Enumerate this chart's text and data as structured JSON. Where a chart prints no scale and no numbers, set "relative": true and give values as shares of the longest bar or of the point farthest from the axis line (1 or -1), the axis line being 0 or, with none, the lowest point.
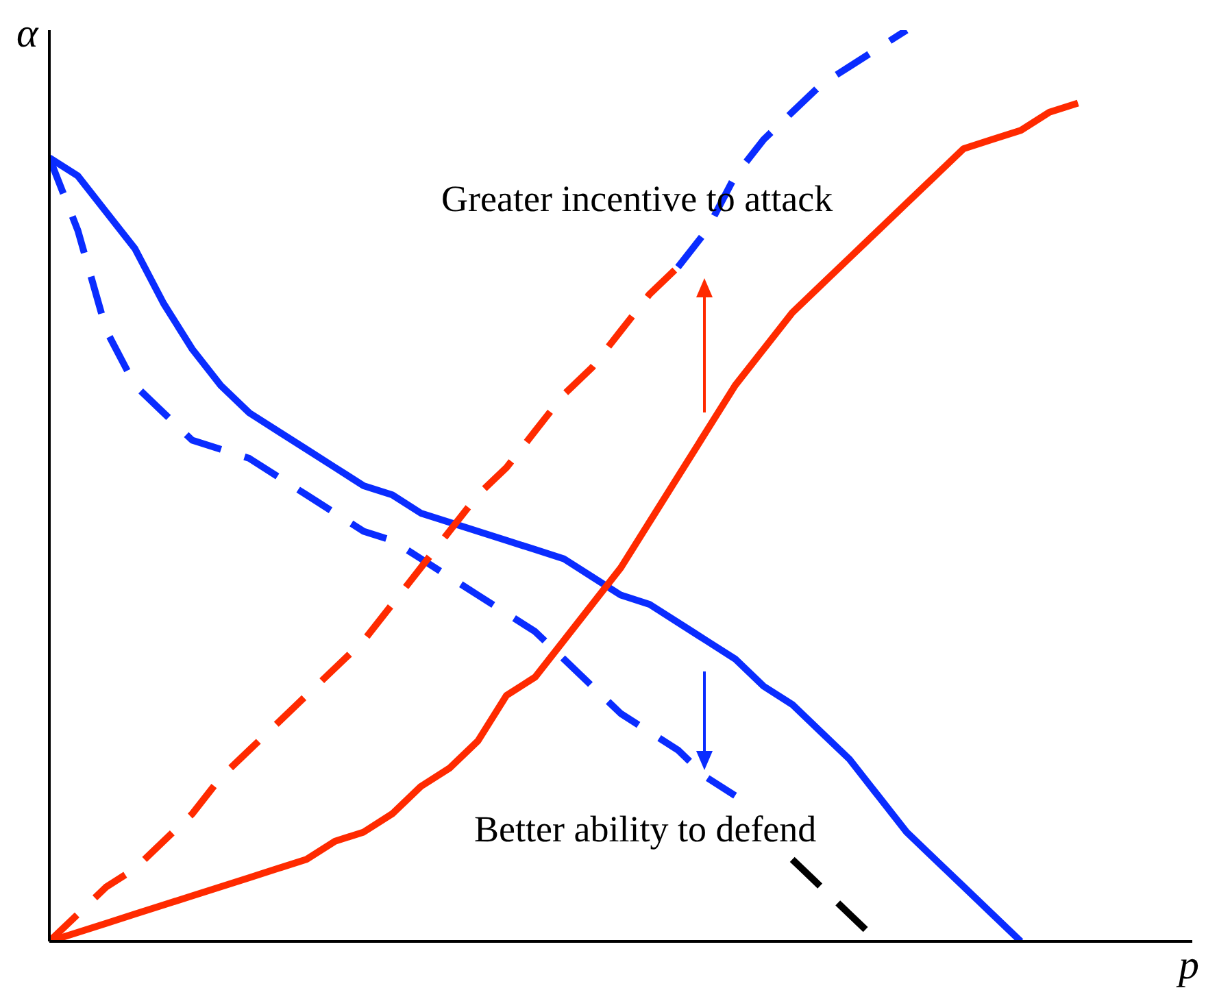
{
  "chart_data": {
    "type": "line",
    "relative": true,
    "xlabel": "p",
    "ylabel": "α",
    "marker": "none",
    "annotations": [
      "Greater incentive to attack",
      "Better ability to defend"
    ],
    "categories": [
      null,
      null,
      null,
      null,
      null,
      null,
      null,
      null,
      null,
      null,
      null,
      null,
      null,
      null,
      null,
      null,
      null,
      null,
      null,
      null,
      null,
      null,
      null,
      null,
      null,
      null,
      null,
      null,
      null,
      null,
      null,
      null,
      null,
      null,
      null,
      null,
      null,
      null,
      null,
      null,
      null
    ],
    "series": [
      {
        "color": "#0a2cff",
        "line_style": "solid",
        "values": [
          0.86,
          0.84,
          0.8,
          0.76,
          0.7,
          0.65,
          0.61,
          0.58,
          0.56,
          0.54,
          0.52,
          0.5,
          0.49,
          0.47,
          0.46,
          0.45,
          0.44,
          0.43,
          0.42,
          0.4,
          0.38,
          0.37,
          0.35,
          0.33,
          0.31,
          0.28,
          0.26,
          0.23,
          0.2,
          0.16,
          0.12,
          0.09,
          0.06,
          0.03,
          0,
          null,
          null,
          null,
          null,
          null,
          null
        ]
      },
      {
        "color": "#0a2cff",
        "line_style": "dashed",
        "values": [
          0.86,
          0.78,
          0.67,
          0.61,
          0.58,
          0.55,
          0.54,
          0.53,
          0.51,
          0.49,
          0.47,
          0.45,
          0.44,
          0.42,
          0.4,
          0.38,
          0.36,
          0.34,
          0.31,
          0.28,
          0.25,
          0.23,
          0.21,
          0.18,
          0.16,
          null,
          null,
          null,
          null,
          null,
          null,
          null,
          null,
          null,
          null,
          null,
          null,
          null,
          null,
          null,
          null
        ]
      },
      {
        "color": "#000000",
        "line_style": "dashed",
        "values": [
          null,
          null,
          null,
          null,
          null,
          null,
          null,
          null,
          null,
          null,
          null,
          null,
          null,
          null,
          null,
          null,
          null,
          null,
          null,
          null,
          null,
          null,
          null,
          null,
          null,
          null,
          0.09,
          0.06,
          0.03,
          0,
          null,
          null,
          null,
          null,
          null,
          null,
          null,
          null,
          null,
          null,
          null
        ]
      },
      {
        "color": "#ff2a00",
        "line_style": "dashed",
        "values": [
          0,
          0.03,
          0.06,
          0.08,
          0.11,
          0.14,
          0.18,
          0.21,
          0.24,
          0.27,
          0.3,
          0.33,
          0.37,
          0.41,
          0.45,
          0.49,
          0.52,
          0.56,
          0.6,
          0.63,
          0.67,
          0.71,
          0.74,
          null,
          null,
          null,
          null,
          null,
          null,
          null,
          null,
          null,
          null,
          null,
          null,
          null,
          null,
          null,
          null,
          null,
          null
        ]
      },
      {
        "color": "#0a2cff",
        "line_style": "dashed",
        "values": [
          null,
          null,
          null,
          null,
          null,
          null,
          null,
          null,
          null,
          null,
          null,
          null,
          null,
          null,
          null,
          null,
          null,
          null,
          null,
          null,
          null,
          null,
          0.74,
          0.78,
          0.84,
          0.88,
          0.91,
          0.94,
          0.96,
          0.98,
          1,
          null,
          null,
          null,
          null,
          null,
          null,
          null,
          null,
          null,
          null
        ]
      },
      {
        "color": "#ff2a00",
        "line_style": "solid",
        "values": [
          0,
          0.01,
          0.02,
          0.03,
          0.04,
          0.05,
          0.06,
          0.07,
          0.08,
          0.09,
          0.11,
          0.12,
          0.14,
          0.17,
          0.19,
          0.22,
          0.27,
          0.29,
          0.33,
          0.37,
          0.41,
          0.46,
          0.51,
          0.56,
          0.61,
          0.65,
          0.69,
          0.72,
          0.75,
          0.78,
          0.81,
          0.84,
          0.87,
          0.88,
          0.89,
          0.91,
          0.92,
          null,
          null,
          null,
          null
        ]
      }
    ]
  }
}
